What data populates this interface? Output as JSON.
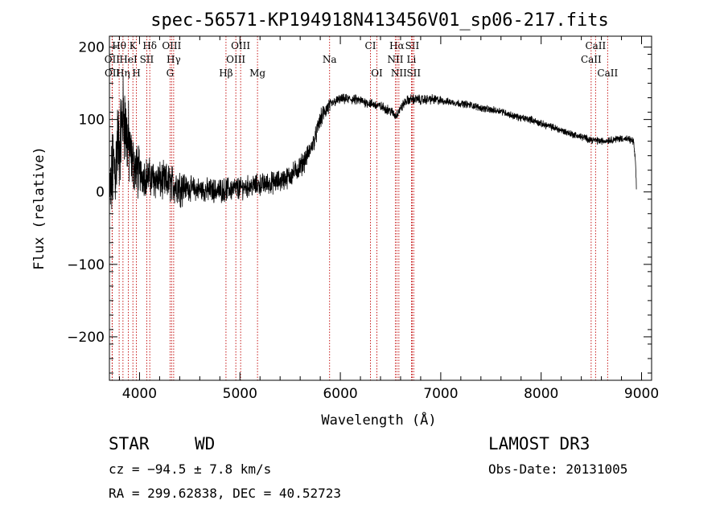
{
  "chart_data": {
    "type": "line",
    "title": "spec-56571-KP194918N413456V01_sp06-217.fits",
    "xlabel": "Wavelength (Å)",
    "ylabel": "Flux (relative)",
    "xlim": [
      3700,
      9100
    ],
    "ylim": [
      -260,
      215
    ],
    "xticks": [
      4000,
      5000,
      6000,
      7000,
      8000,
      9000
    ],
    "yticks": [
      -200,
      -100,
      0,
      100,
      200
    ],
    "series": [
      {
        "values_anchor": [
          [
            3700,
            -20
          ],
          [
            3720,
            10
          ],
          [
            3740,
            40
          ],
          [
            3760,
            30
          ],
          [
            3780,
            70
          ],
          [
            3800,
            60
          ],
          [
            3820,
            90
          ],
          [
            3840,
            110
          ],
          [
            3860,
            90
          ],
          [
            3880,
            70
          ],
          [
            3900,
            60
          ],
          [
            3920,
            45
          ],
          [
            3950,
            35
          ],
          [
            4000,
            25
          ],
          [
            4100,
            20
          ],
          [
            4200,
            15
          ],
          [
            4300,
            12
          ],
          [
            4400,
            8
          ],
          [
            4500,
            5
          ],
          [
            4600,
            3
          ],
          [
            4700,
            2
          ],
          [
            4800,
            2
          ],
          [
            4900,
            4
          ],
          [
            5000,
            5
          ],
          [
            5100,
            8
          ],
          [
            5200,
            10
          ],
          [
            5300,
            12
          ],
          [
            5400,
            15
          ],
          [
            5500,
            22
          ],
          [
            5600,
            35
          ],
          [
            5650,
            45
          ],
          [
            5700,
            58
          ],
          [
            5750,
            75
          ],
          [
            5800,
            100
          ],
          [
            5850,
            112
          ],
          [
            5900,
            120
          ],
          [
            5950,
            125
          ],
          [
            6000,
            128
          ],
          [
            6100,
            128
          ],
          [
            6200,
            126
          ],
          [
            6300,
            122
          ],
          [
            6400,
            118
          ],
          [
            6500,
            112
          ],
          [
            6550,
            105
          ],
          [
            6600,
            115
          ],
          [
            6650,
            125
          ],
          [
            6700,
            128
          ],
          [
            6750,
            128
          ],
          [
            6800,
            127
          ],
          [
            6900,
            128
          ],
          [
            7000,
            126
          ],
          [
            7100,
            124
          ],
          [
            7200,
            122
          ],
          [
            7300,
            120
          ],
          [
            7400,
            116
          ],
          [
            7500,
            113
          ],
          [
            7600,
            112
          ],
          [
            7700,
            106
          ],
          [
            7800,
            102
          ],
          [
            7900,
            100
          ],
          [
            8000,
            94
          ],
          [
            8100,
            90
          ],
          [
            8200,
            85
          ],
          [
            8300,
            80
          ],
          [
            8400,
            76
          ],
          [
            8500,
            72
          ],
          [
            8600,
            70
          ],
          [
            8700,
            72
          ],
          [
            8800,
            74
          ],
          [
            8880,
            72
          ],
          [
            8920,
            70
          ],
          [
            8940,
            40
          ],
          [
            8950,
            0
          ]
        ]
      }
    ],
    "lines": [
      {
        "label": "Hθ",
        "x": 3797,
        "row": 0
      },
      {
        "label": "K",
        "x": 3934,
        "row": 0
      },
      {
        "label": "Hδ",
        "x": 4102,
        "row": 0
      },
      {
        "label": "OIII",
        "x": 4320,
        "row": 0
      },
      {
        "label": "OIII",
        "x": 5007,
        "row": 0
      },
      {
        "label": "CI",
        "x": 6300,
        "row": 0
      },
      {
        "label": "Hα",
        "x": 6563,
        "row": 0
      },
      {
        "label": "SII",
        "x": 6716,
        "row": 0
      },
      {
        "label": "CaII",
        "x": 8542,
        "row": 0
      },
      {
        "label": "OII",
        "x": 3727,
        "row": 1
      },
      {
        "label": "HeI",
        "x": 3889,
        "row": 1
      },
      {
        "label": "SII",
        "x": 4072,
        "row": 1
      },
      {
        "label": "Hγ",
        "x": 4340,
        "row": 1
      },
      {
        "label": "OIII",
        "x": 4959,
        "row": 1
      },
      {
        "label": "Na",
        "x": 5893,
        "row": 1
      },
      {
        "label": "NII",
        "x": 6548,
        "row": 1
      },
      {
        "label": "Li",
        "x": 6708,
        "row": 1
      },
      {
        "label": "CaII",
        "x": 8498,
        "row": 1
      },
      {
        "label": "OII",
        "x": 3729,
        "row": 2
      },
      {
        "label": "Hη",
        "x": 3835,
        "row": 2
      },
      {
        "label": "H",
        "x": 3969,
        "row": 2
      },
      {
        "label": "G",
        "x": 4304,
        "row": 2
      },
      {
        "label": "Hβ",
        "x": 4861,
        "row": 2
      },
      {
        "label": "Mg",
        "x": 5175,
        "row": 2
      },
      {
        "label": "OI",
        "x": 6364,
        "row": 2
      },
      {
        "label": "NII",
        "x": 6583,
        "row": 2
      },
      {
        "label": "SII",
        "x": 6731,
        "row": 2
      },
      {
        "label": "CaII",
        "x": 8662,
        "row": 2
      }
    ]
  },
  "info": {
    "class": "STAR",
    "subclass": "WD",
    "survey": "LAMOST DR3",
    "cz": "cz = −94.5 ± 7.8 km/s",
    "obs_date": "Obs-Date: 20131005",
    "radec": "RA = 299.62838, DEC =  40.52723"
  }
}
